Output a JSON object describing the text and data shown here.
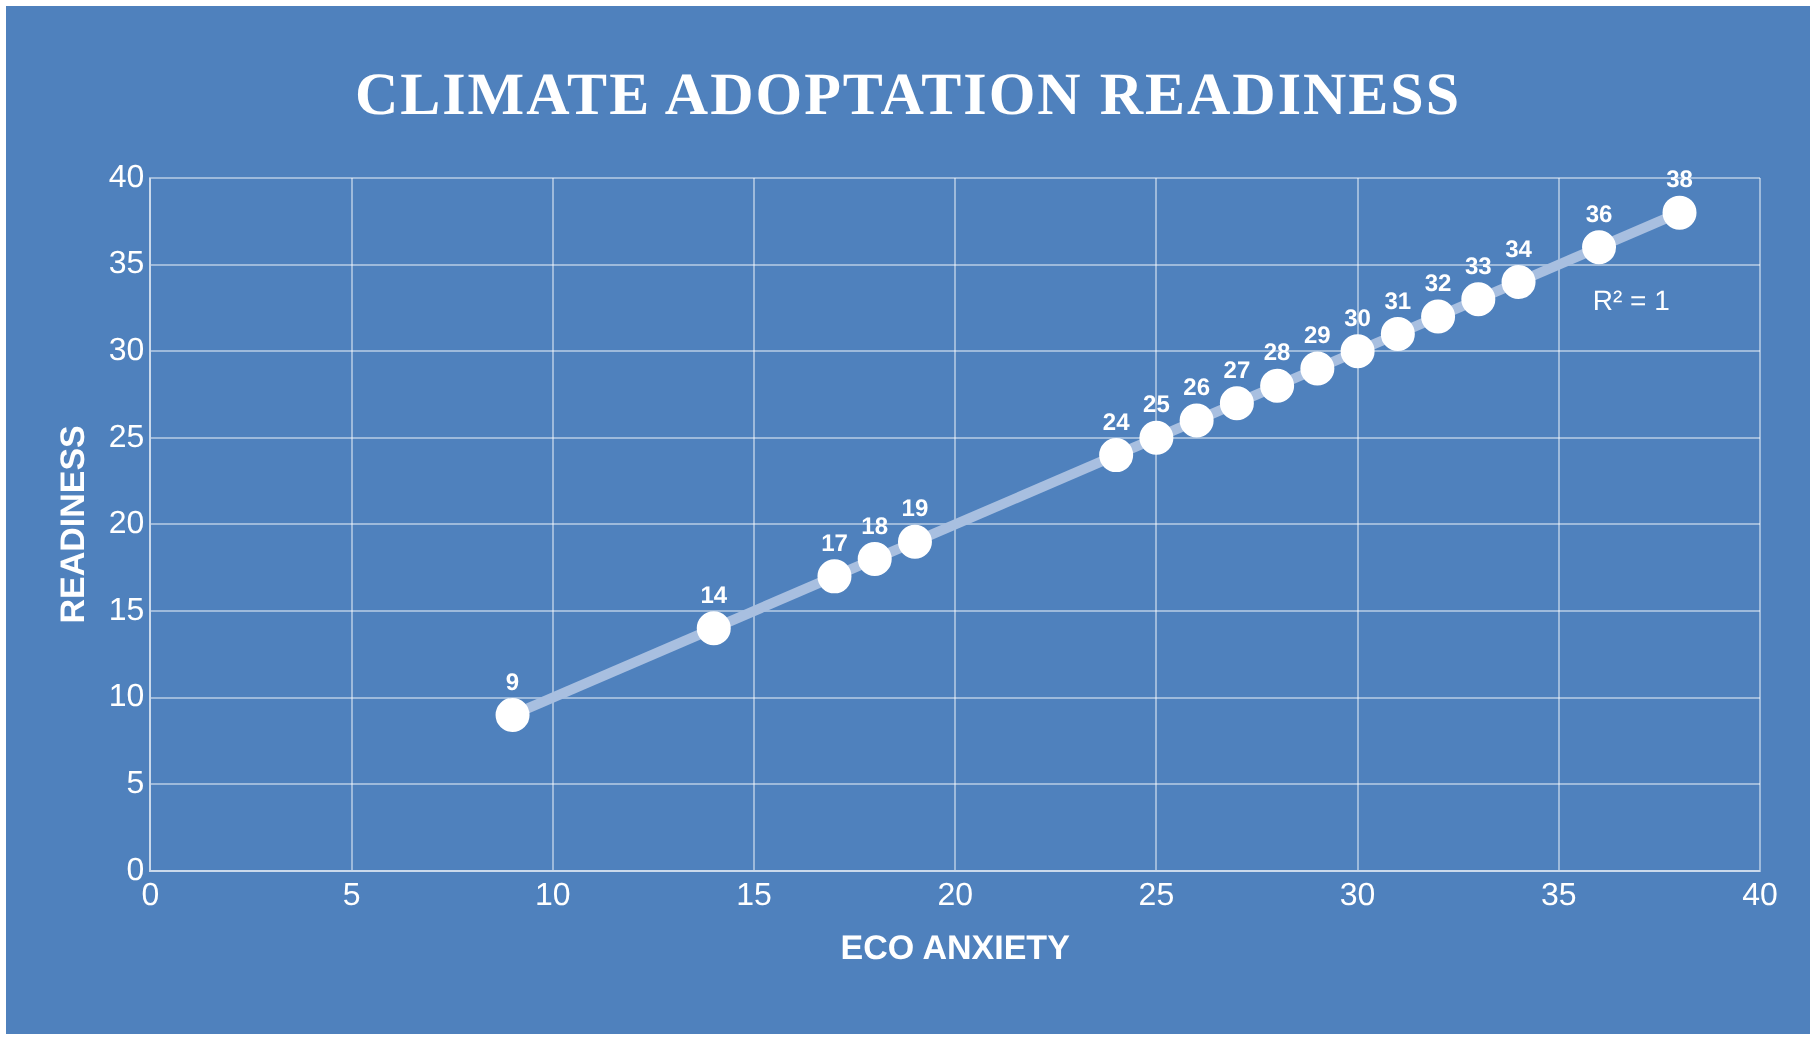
{
  "chart_data": {
    "type": "scatter",
    "title": "CLIMATE ADOPTATION READINESS",
    "xlabel": "ECO ANXIETY",
    "ylabel": "READINESS",
    "x": [
      9,
      14,
      17,
      18,
      19,
      24,
      25,
      26,
      27,
      28,
      29,
      30,
      31,
      32,
      33,
      34,
      36,
      38
    ],
    "series": [
      {
        "type": "line",
        "color": "#a8bfe0",
        "x": [
          9,
          38
        ],
        "values": [
          9,
          38
        ],
        "marker": "none"
      },
      {
        "type": "scatter",
        "color": "#ffffff",
        "values": [
          9,
          14,
          17,
          18,
          19,
          24,
          25,
          26,
          27,
          28,
          29,
          30,
          31,
          32,
          33,
          34,
          36,
          38
        ],
        "value_labels": [
          "9",
          "14",
          "17",
          "18",
          "19",
          "24",
          "25",
          "26",
          "27",
          "28",
          "29",
          "30",
          "31",
          "32",
          "33",
          "34",
          "36",
          "38"
        ]
      }
    ],
    "marker": "circle",
    "annotations": [
      "R² = 1"
    ],
    "xlim": [
      0,
      40
    ],
    "ylim": [
      0,
      40
    ],
    "xticks": [
      0,
      5,
      10,
      15,
      20,
      25,
      30,
      35,
      40
    ],
    "yticks": [
      0,
      5,
      10,
      15,
      20,
      25,
      30,
      35,
      40
    ],
    "grid": true,
    "legend": false
  }
}
